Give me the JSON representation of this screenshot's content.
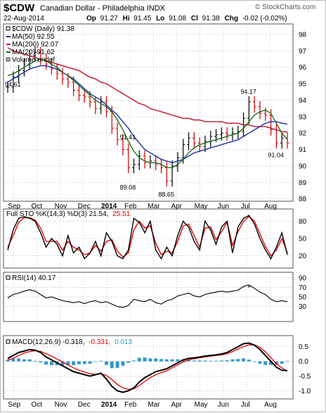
{
  "header": {
    "symbol": "$CDW",
    "name": "Canadian Dollar - Philadelphia INDX",
    "watermark": "© StockCharts.com",
    "date": "22-Aug-2014",
    "ohlc": {
      "op_label": "Op",
      "op": "91.27",
      "hi_label": "Hi",
      "hi": "91.45",
      "lo_label": "Lo",
      "lo": "91.08",
      "cl_label": "Cl",
      "cl": "91.38",
      "chg_label": "Chg",
      "chg": "-0.02 (-0.02%)"
    }
  },
  "colors": {
    "price": "#000000",
    "up_bar": "#000000",
    "down_bar": "#cc0000",
    "ma50": "#1f2fa8",
    "ma200": "#c0102a",
    "ma20": "#1c6e1c",
    "sto_k": "#000000",
    "sto_d": "#e00000",
    "rsi": "#000000",
    "rsi_fill": "#555555",
    "macd": "#000000",
    "signal": "#e00000",
    "hist": "#3399cc",
    "grid": "#cccccc",
    "pane_border": "#555555"
  },
  "chart_data": [
    {
      "type": "candlestick",
      "pane": "price",
      "legend": {
        "main": "$CDW (Daily) 91.38",
        "ma50": "MA(50) 92.55",
        "ma200": "MA(200) 92.07",
        "ma20": "MA(20) 91.62",
        "volume": "Volume undef"
      },
      "ylim": [
        87.9,
        98.6
      ],
      "y_ticks": [
        88,
        89,
        90,
        91,
        92,
        93,
        94,
        95,
        96,
        97,
        98
      ],
      "annotations": [
        {
          "x": "2013-08-30",
          "y": 94.61,
          "text": "94.61"
        },
        {
          "x": "2014-01-28",
          "y": 91.41,
          "text": "91.41"
        },
        {
          "x": "2014-02-03",
          "y": 89.08,
          "text": "89.08"
        },
        {
          "x": "2014-03-20",
          "y": 88.65,
          "text": "88.65"
        },
        {
          "x": "2014-07-01",
          "y": 94.17,
          "text": "94.17"
        },
        {
          "x": "2014-08-07",
          "y": 91.04,
          "text": "91.04"
        }
      ],
      "x": [
        "2013-08-30",
        "2013-09-06",
        "2013-09-13",
        "2013-09-20",
        "2013-09-27",
        "2013-10-04",
        "2013-10-11",
        "2013-10-18",
        "2013-10-25",
        "2013-11-01",
        "2013-11-08",
        "2013-11-15",
        "2013-11-22",
        "2013-11-29",
        "2013-12-06",
        "2013-12-13",
        "2013-12-20",
        "2013-12-27",
        "2014-01-03",
        "2014-01-10",
        "2014-01-17",
        "2014-01-24",
        "2014-01-31",
        "2014-02-07",
        "2014-02-14",
        "2014-02-21",
        "2014-02-28",
        "2014-03-07",
        "2014-03-14",
        "2014-03-21",
        "2014-03-28",
        "2014-04-04",
        "2014-04-11",
        "2014-04-18",
        "2014-04-25",
        "2014-05-02",
        "2014-05-09",
        "2014-05-16",
        "2014-05-23",
        "2014-05-30",
        "2014-06-06",
        "2014-06-13",
        "2014-06-20",
        "2014-06-27",
        "2014-07-04",
        "2014-07-11",
        "2014-07-18",
        "2014-07-25",
        "2014-08-01",
        "2014-08-08",
        "2014-08-15",
        "2014-08-22"
      ],
      "series": [
        {
          "name": "$CDW (Daily)",
          "values": [
            94.8,
            95.4,
            95.8,
            96.2,
            96.7,
            96.9,
            96.5,
            96.2,
            95.9,
            95.6,
            95.3,
            95.1,
            94.6,
            94.3,
            94.2,
            93.9,
            93.5,
            93.9,
            93.3,
            92.3,
            91.6,
            91.0,
            89.9,
            90.1,
            90.6,
            90.2,
            90.3,
            90.1,
            89.9,
            89.1,
            90.0,
            90.5,
            91.3,
            91.7,
            91.4,
            91.2,
            91.5,
            91.8,
            91.9,
            92.0,
            91.9,
            92.0,
            92.1,
            92.9,
            93.9,
            93.6,
            93.2,
            93.1,
            92.2,
            91.4,
            91.7,
            91.4
          ]
        },
        {
          "name": "MA(50)",
          "values": [
            95.1,
            95.3,
            95.5,
            95.7,
            95.9,
            96.0,
            96.1,
            96.1,
            96.0,
            95.9,
            95.7,
            95.5,
            95.3,
            95.0,
            94.7,
            94.4,
            94.2,
            94.0,
            93.7,
            93.4,
            93.1,
            92.7,
            92.3,
            91.8,
            91.4,
            91.0,
            90.8,
            90.6,
            90.4,
            90.3,
            90.2,
            90.3,
            90.4,
            90.6,
            90.8,
            90.9,
            91.0,
            91.1,
            91.2,
            91.3,
            91.4,
            91.5,
            91.6,
            91.8,
            92.0,
            92.2,
            92.4,
            92.6,
            92.7,
            92.7,
            92.6,
            92.55
          ]
        },
        {
          "name": "MA(200)",
          "values": [
            97.2,
            97.0,
            96.9,
            96.8,
            96.7,
            96.6,
            96.5,
            96.4,
            96.3,
            96.2,
            96.1,
            96.0,
            95.9,
            95.8,
            95.6,
            95.4,
            95.3,
            95.1,
            95.0,
            94.8,
            94.6,
            94.4,
            94.2,
            94.0,
            93.8,
            93.7,
            93.5,
            93.4,
            93.3,
            93.2,
            93.1,
            93.0,
            92.9,
            92.9,
            92.8,
            92.8,
            92.7,
            92.7,
            92.7,
            92.7,
            92.6,
            92.6,
            92.6,
            92.5,
            92.5,
            92.4,
            92.4,
            92.4,
            92.3,
            92.2,
            92.1,
            92.07
          ]
        },
        {
          "name": "MA(20)",
          "values": [
            95.5,
            95.6,
            95.8,
            96.0,
            96.2,
            96.4,
            96.5,
            96.4,
            96.2,
            96.0,
            95.7,
            95.5,
            95.2,
            94.9,
            94.6,
            94.3,
            94.0,
            93.8,
            93.6,
            93.3,
            92.8,
            92.2,
            91.5,
            90.9,
            90.5,
            90.3,
            90.2,
            90.2,
            90.1,
            89.9,
            89.9,
            90.1,
            90.4,
            90.8,
            91.1,
            91.3,
            91.4,
            91.5,
            91.6,
            91.7,
            91.8,
            91.9,
            92.0,
            92.3,
            92.7,
            93.1,
            93.3,
            93.4,
            93.2,
            92.6,
            92.0,
            91.62
          ]
        }
      ]
    },
    {
      "type": "line",
      "pane": "stochastic",
      "legend": {
        "main": "Full STO %K(14,3) %D(3) 21.54,",
        "d_value": "25.51"
      },
      "ylim": [
        0,
        100
      ],
      "y_ticks": [
        20,
        50,
        80
      ],
      "series": [
        {
          "name": "%K",
          "values": [
            30,
            65,
            85,
            88,
            85,
            80,
            60,
            35,
            50,
            40,
            20,
            55,
            25,
            35,
            15,
            25,
            45,
            20,
            60,
            45,
            20,
            15,
            30,
            85,
            78,
            60,
            80,
            30,
            15,
            35,
            20,
            55,
            80,
            70,
            45,
            30,
            80,
            65,
            40,
            70,
            80,
            25,
            70,
            85,
            90,
            75,
            50,
            30,
            15,
            35,
            60,
            21.54
          ]
        },
        {
          "name": "%D",
          "values": [
            35,
            55,
            78,
            86,
            86,
            82,
            68,
            45,
            45,
            45,
            30,
            45,
            35,
            30,
            22,
            25,
            38,
            28,
            45,
            48,
            28,
            18,
            25,
            65,
            80,
            68,
            72,
            42,
            22,
            28,
            25,
            45,
            72,
            75,
            55,
            35,
            68,
            70,
            48,
            62,
            78,
            38,
            62,
            80,
            88,
            80,
            58,
            36,
            20,
            30,
            50,
            25.51
          ]
        }
      ]
    },
    {
      "type": "area",
      "pane": "rsi",
      "legend": {
        "main": "RSI(14) 40.17"
      },
      "ylim": [
        0,
        100
      ],
      "y_ticks": [
        30,
        50,
        70,
        90
      ],
      "series": [
        {
          "name": "RSI(14)",
          "values": [
            48,
            55,
            58,
            62,
            65,
            62,
            55,
            48,
            50,
            46,
            42,
            40,
            38,
            40,
            36,
            40,
            42,
            38,
            40,
            35,
            30,
            28,
            32,
            45,
            42,
            40,
            45,
            38,
            35,
            42,
            45,
            52,
            55,
            58,
            52,
            50,
            55,
            58,
            60,
            62,
            60,
            62,
            64,
            72,
            75,
            68,
            60,
            55,
            45,
            40,
            42,
            40.17
          ]
        }
      ]
    },
    {
      "type": "line",
      "pane": "macd",
      "legend": {
        "main": "MACD(12,26,9) -0.318,",
        "signal_value": "-0.331,",
        "hist_value": "0.013"
      },
      "ylim": [
        -1.25,
        0.85
      ],
      "y_ticks": [
        -1.0,
        -0.5,
        0.0,
        0.5
      ],
      "x_ticks": [
        "Sep",
        "Oct",
        "Nov",
        "Dec",
        "2014",
        "Feb",
        "Mar",
        "Apr",
        "May",
        "Jun",
        "Jul",
        "Aug"
      ],
      "series": [
        {
          "name": "MACD",
          "values": [
            0.1,
            0.2,
            0.3,
            0.35,
            0.4,
            0.38,
            0.3,
            0.15,
            0.05,
            -0.05,
            -0.15,
            -0.25,
            -0.35,
            -0.4,
            -0.45,
            -0.5,
            -0.45,
            -0.4,
            -0.6,
            -0.85,
            -1.0,
            -1.05,
            -1.0,
            -0.9,
            -0.7,
            -0.55,
            -0.45,
            -0.35,
            -0.3,
            -0.25,
            -0.15,
            -0.05,
            0.05,
            0.1,
            0.12,
            0.15,
            0.18,
            0.2,
            0.22,
            0.25,
            0.3,
            0.4,
            0.5,
            0.6,
            0.62,
            0.55,
            0.4,
            0.2,
            0.0,
            -0.2,
            -0.3,
            -0.318
          ]
        },
        {
          "name": "Signal",
          "values": [
            0.05,
            0.1,
            0.2,
            0.28,
            0.33,
            0.36,
            0.34,
            0.26,
            0.18,
            0.08,
            -0.02,
            -0.12,
            -0.22,
            -0.3,
            -0.36,
            -0.42,
            -0.44,
            -0.42,
            -0.48,
            -0.62,
            -0.78,
            -0.9,
            -0.95,
            -0.93,
            -0.82,
            -0.68,
            -0.55,
            -0.45,
            -0.38,
            -0.32,
            -0.22,
            -0.12,
            -0.02,
            0.05,
            0.09,
            0.12,
            0.15,
            0.18,
            0.2,
            0.22,
            0.26,
            0.33,
            0.42,
            0.5,
            0.56,
            0.56,
            0.48,
            0.32,
            0.12,
            -0.08,
            -0.22,
            -0.331
          ]
        },
        {
          "name": "Histogram",
          "values": [
            0.05,
            0.1,
            0.1,
            0.07,
            0.07,
            0.02,
            -0.04,
            -0.11,
            -0.13,
            -0.13,
            -0.13,
            -0.13,
            -0.13,
            -0.1,
            -0.09,
            -0.08,
            -0.01,
            0.02,
            -0.12,
            -0.23,
            -0.22,
            -0.15,
            -0.05,
            0.03,
            0.12,
            0.13,
            0.1,
            0.1,
            0.08,
            0.07,
            0.07,
            0.07,
            0.07,
            0.05,
            0.03,
            0.03,
            0.03,
            0.02,
            0.02,
            0.03,
            0.04,
            0.07,
            0.08,
            0.1,
            0.06,
            -0.01,
            -0.08,
            -0.12,
            -0.12,
            -0.12,
            -0.08,
            0.013
          ]
        }
      ]
    }
  ]
}
